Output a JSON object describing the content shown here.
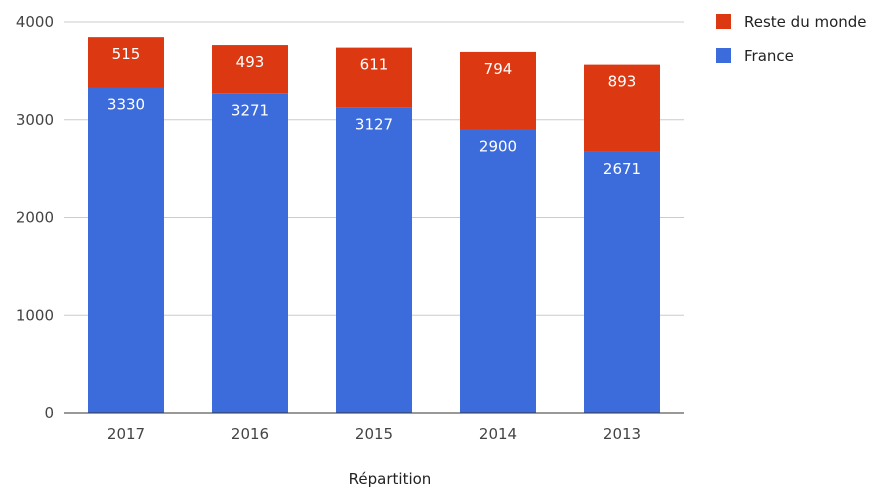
{
  "chart_data": {
    "type": "bar",
    "stacked": true,
    "categories": [
      "2017",
      "2016",
      "2015",
      "2014",
      "2013"
    ],
    "series": [
      {
        "name": "France",
        "values": [
          3330,
          3271,
          3127,
          2900,
          2671
        ],
        "color": "#3c6bdb"
      },
      {
        "name": "Reste du monde",
        "values": [
          515,
          493,
          611,
          794,
          893
        ],
        "color": "#dc3912"
      }
    ],
    "xlabel": "Répartition",
    "ylabel": "",
    "ylim": [
      0,
      4000
    ],
    "yticks": [
      0,
      1000,
      2000,
      3000,
      4000
    ],
    "grid": true,
    "legend": "top-right",
    "legend_order": [
      "Reste du monde",
      "France"
    ],
    "data_labels": true
  }
}
